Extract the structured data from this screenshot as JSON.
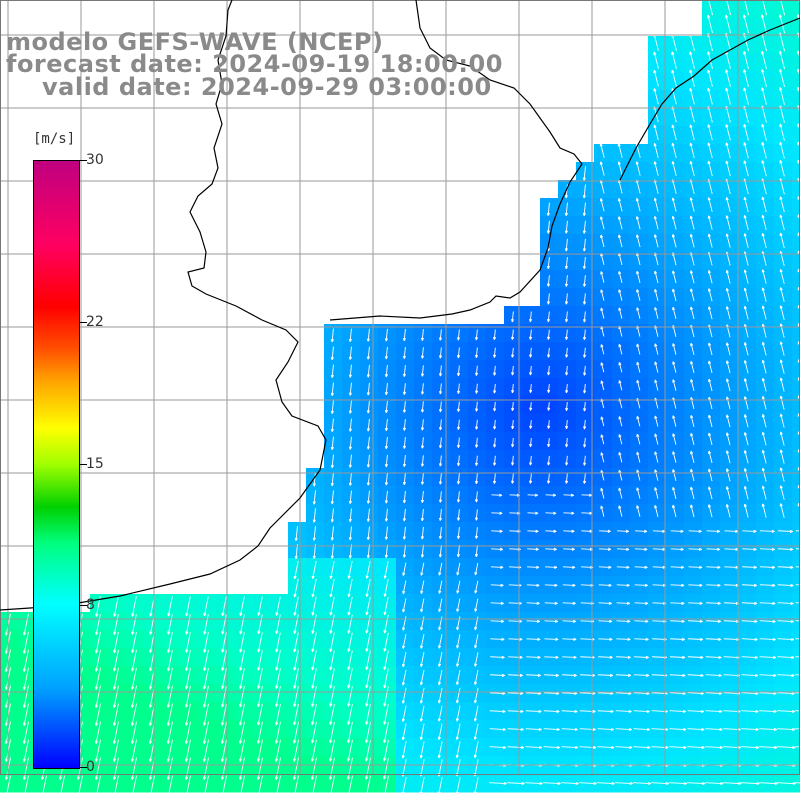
{
  "header": {
    "line1": "modelo GEFS-WAVE (NCEP)",
    "line2": "forecast date: 2024-09-19 18:00:00",
    "line3": "valid date: 2024-09-29 03:00:00"
  },
  "colorbar": {
    "units": "[m/s]",
    "ticks": [
      "0",
      "8",
      "15",
      "22",
      "30"
    ],
    "tick_values": [
      0,
      8,
      15,
      22,
      30
    ],
    "range": [
      0,
      30
    ],
    "colors": [
      "#0000ff",
      "#00a0ff",
      "#00ffff",
      "#00ff80",
      "#00d000",
      "#a0ff00",
      "#ffff00",
      "#ffa000",
      "#ff5000",
      "#ff0000",
      "#ff0060",
      "#c00080"
    ]
  },
  "map": {
    "grid_color": "#9a9a9a",
    "land_color": "#ffffff",
    "coast_color": "#000000",
    "field": "wind speed and direction over ocean"
  }
}
